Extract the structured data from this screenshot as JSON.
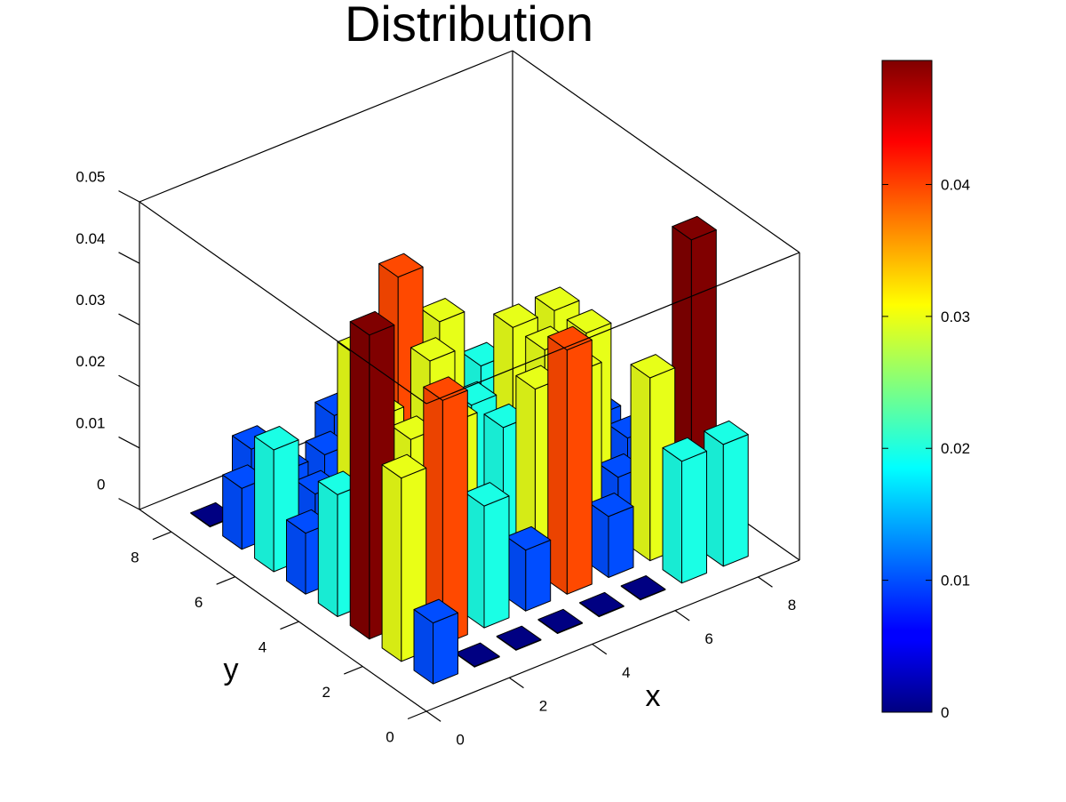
{
  "chart_data": {
    "type": "bar3d",
    "title": "Distribution",
    "xlabel": "x",
    "ylabel": "y",
    "zlabel": "",
    "x": [
      1,
      2,
      3,
      4,
      5,
      6,
      7,
      8
    ],
    "y": [
      1,
      2,
      3,
      4,
      5,
      6,
      7,
      8
    ],
    "xlim": [
      0,
      9
    ],
    "ylim": [
      0,
      9
    ],
    "zlim": [
      0,
      0.05
    ],
    "x_ticks": [
      "0",
      "2",
      "4",
      "6",
      "8"
    ],
    "y_ticks": [
      "0",
      "2",
      "4",
      "6",
      "8"
    ],
    "z_ticks": [
      "0",
      "0.01",
      "0.02",
      "0.03",
      "0.04",
      "0.05"
    ],
    "z_values_by_y": [
      [
        0.0099,
        0.0001,
        0.0001,
        0.0001,
        0.0001,
        0.0001,
        0.0198,
        0.0198
      ],
      [
        0.0298,
        0.0397,
        0.0198,
        0.0099,
        0.0397,
        0.0099,
        0.0297,
        0.0494
      ],
      [
        0.0494,
        0.0297,
        0.0297,
        0.0001,
        0.0297,
        0.0297,
        0.0099,
        0.0099
      ],
      [
        0.0198,
        0.0297,
        0.0099,
        0.0001,
        0.0198,
        0.0297,
        0.0297,
        0.0099
      ],
      [
        0.0099,
        0.0099,
        0.0198,
        0.0297,
        0.0198,
        0.0297,
        0.0297,
        0.0099
      ],
      [
        0.0198,
        0.0099,
        0.0297,
        0.0397,
        0.0297,
        0.0198,
        0.0099,
        0.0001
      ],
      [
        0.0099,
        0.0099,
        0.0099,
        0.0001,
        0.0099,
        0.0099,
        0.0001,
        0.0001
      ],
      [
        0.0001,
        0.0099,
        0.0001,
        0.0099,
        0.0001,
        0.0099,
        0.0001,
        0.0001
      ]
    ],
    "colormap": "jet",
    "colorbar": {
      "range": [
        0,
        0.0494
      ],
      "ticks": [
        "0",
        "0.01",
        "0.02",
        "0.03",
        "0.04"
      ],
      "tick_values": [
        0,
        0.01,
        0.02,
        0.03,
        0.04
      ]
    },
    "grid": false
  }
}
